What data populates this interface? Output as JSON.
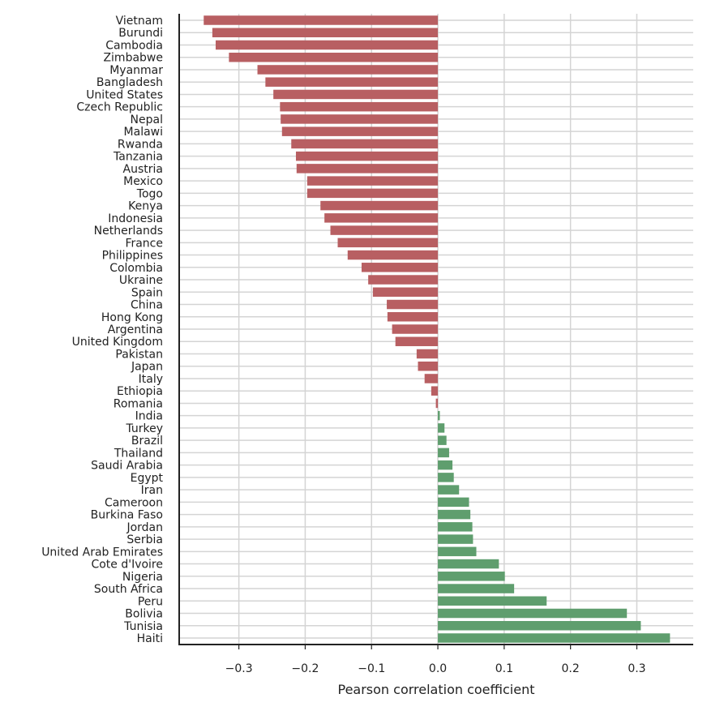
{
  "chart_data": {
    "type": "bar",
    "orientation": "horizontal",
    "title": "",
    "xlabel": "Pearson correlation coefficient",
    "ylabel": "",
    "xlim": [
      -0.39,
      0.385
    ],
    "xticks": [
      -0.3,
      -0.2,
      -0.1,
      0.0,
      0.1,
      0.2,
      0.3
    ],
    "xtick_labels": [
      "−0.3",
      "−0.2",
      "−0.1",
      "0.0",
      "0.1",
      "0.2",
      "0.3"
    ],
    "grid": true,
    "legend": "none",
    "colors": {
      "negative": "#b85f62",
      "positive": "#5f9e6e",
      "grid": "#d4d4d4",
      "axis": "#222222"
    },
    "categories": [
      "Vietnam",
      "Burundi",
      "Cambodia",
      "Zimbabwe",
      "Myanmar",
      "Bangladesh",
      "United States",
      "Czech Republic",
      "Nepal",
      "Malawi",
      "Rwanda",
      "Tanzania",
      "Austria",
      "Mexico",
      "Togo",
      "Kenya",
      "Indonesia",
      "Netherlands",
      "France",
      "Philippines",
      "Colombia",
      "Ukraine",
      "Spain",
      "China",
      "Hong Kong",
      "Argentina",
      "United Kingdom",
      "Pakistan",
      "Japan",
      "Italy",
      "Ethiopia",
      "Romania",
      "India",
      "Turkey",
      "Brazil",
      "Thailand",
      "Saudi Arabia",
      "Egypt",
      "Iran",
      "Cameroon",
      "Burkina Faso",
      "Jordan",
      "Serbia",
      "United Arab Emirates",
      "Cote d'Ivoire",
      "Nigeria",
      "South Africa",
      "Peru",
      "Bolivia",
      "Tunisia",
      "Haiti"
    ],
    "values": [
      -0.353,
      -0.34,
      -0.335,
      -0.315,
      -0.272,
      -0.26,
      -0.248,
      -0.238,
      -0.237,
      -0.235,
      -0.221,
      -0.214,
      -0.213,
      -0.197,
      -0.197,
      -0.177,
      -0.171,
      -0.162,
      -0.151,
      -0.136,
      -0.115,
      -0.105,
      -0.098,
      -0.077,
      -0.076,
      -0.069,
      -0.064,
      -0.032,
      -0.03,
      -0.02,
      -0.01,
      -0.003,
      0.003,
      0.01,
      0.013,
      0.017,
      0.022,
      0.024,
      0.032,
      0.047,
      0.049,
      0.052,
      0.053,
      0.058,
      0.092,
      0.101,
      0.115,
      0.164,
      0.285,
      0.306,
      0.35
    ]
  }
}
